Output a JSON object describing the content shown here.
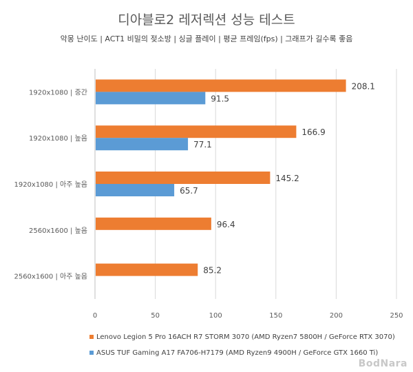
{
  "chart_data": {
    "type": "bar",
    "orientation": "horizontal",
    "title": "디아블로2 레저렉션 성능 테스트",
    "subtitle": "악몽 난이도 | ACT1 비밀의 젖소방 | 싱글 플레이 | 평균 프레임(fps) | 그래프가 길수록 좋음",
    "categories": [
      "1920x1080 | 중간",
      "1920x1080 | 높음",
      "1920x1080 | 아주 높음",
      "2560x1600 | 높음",
      "2560x1600 | 아주 높음"
    ],
    "series": [
      {
        "name": "Lenovo Legion 5 Pro 16ACH R7 STORM 3070 (AMD Ryzen7 5800H / GeForce RTX 3070)",
        "color": "#ED7D31",
        "values": [
          208.1,
          166.9,
          145.2,
          96.4,
          85.2
        ]
      },
      {
        "name": "ASUS TUF Gaming A17 FA706-H7179 (AMD Ryzen9 4900H / GeForce GTX 1660 Ti)",
        "color": "#5B9BD5",
        "values": [
          91.5,
          77.1,
          65.7,
          null,
          null
        ]
      }
    ],
    "xlabel": "",
    "ylabel": "",
    "xlim": [
      0,
      250
    ],
    "xticks": [
      0,
      50,
      100,
      150,
      200,
      250
    ],
    "grid": true,
    "legend_position": "bottom"
  },
  "watermark": "BodNara"
}
